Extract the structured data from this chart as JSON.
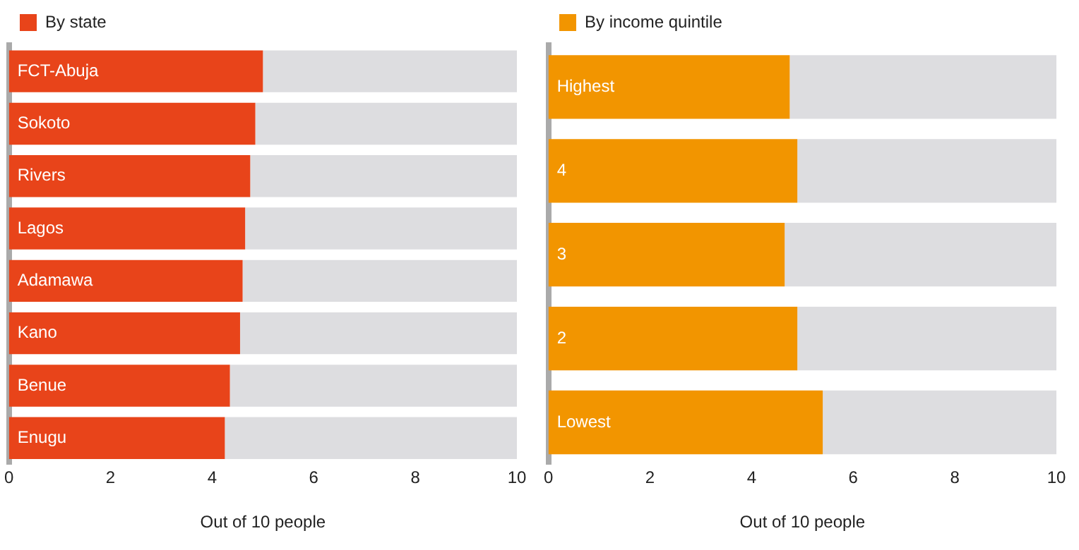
{
  "chart_data": [
    {
      "type": "bar",
      "orientation": "horizontal",
      "stacked": true,
      "categories": [
        "FCT-Abuja",
        "Sokoto",
        "Rivers",
        "Lagos",
        "Adamawa",
        "Kano",
        "Benue",
        "Enugu"
      ],
      "series": [
        {
          "name": "By state",
          "color": "#e8441a",
          "values": [
            5.0,
            4.85,
            4.75,
            4.65,
            4.6,
            4.55,
            4.35,
            4.25
          ]
        },
        {
          "color": "#dddde0",
          "values": [
            5.0,
            5.15,
            5.25,
            5.35,
            5.4,
            5.45,
            5.65,
            5.75
          ]
        }
      ],
      "xlim": [
        0,
        10
      ],
      "xticks": [
        0,
        2,
        4,
        6,
        8,
        10
      ],
      "xlabel": "Out of 10 people",
      "legend": "top left"
    },
    {
      "type": "bar",
      "orientation": "horizontal",
      "stacked": true,
      "categories": [
        "Highest",
        "4",
        "3",
        "2",
        "Lowest"
      ],
      "series": [
        {
          "name": "By income quintile",
          "color": "#f29500",
          "values": [
            4.75,
            4.9,
            4.65,
            4.9,
            5.4
          ]
        },
        {
          "color": "#dddde0",
          "values": [
            5.25,
            5.1,
            5.35,
            5.1,
            4.6
          ]
        }
      ],
      "xlim": [
        0,
        10
      ],
      "xticks": [
        0,
        2,
        4,
        6,
        8,
        10
      ],
      "xlabel": "Out of 10 people",
      "legend": "top left"
    }
  ]
}
